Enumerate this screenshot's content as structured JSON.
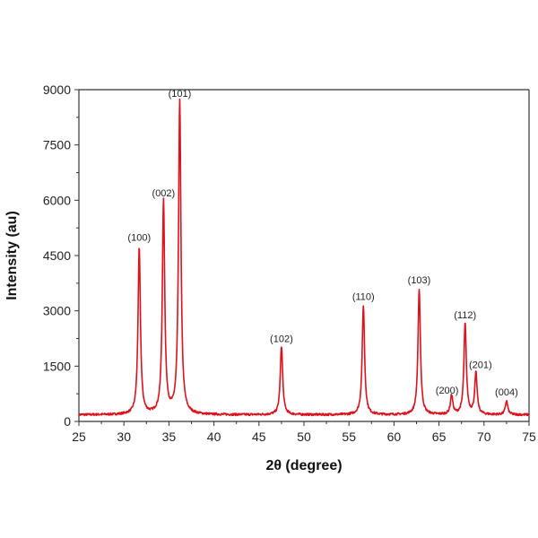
{
  "chart_data": {
    "type": "line",
    "title": "",
    "xlabel": "2θ (degree)",
    "ylabel": "Intensity (au)",
    "xlim": [
      25,
      75
    ],
    "ylim": [
      0,
      9000
    ],
    "x_ticks": [
      25,
      30,
      35,
      40,
      45,
      50,
      55,
      60,
      65,
      70,
      75
    ],
    "y_ticks": [
      0,
      1500,
      3000,
      4500,
      6000,
      7500,
      9000
    ],
    "grid": false,
    "legend": "none",
    "series": [
      {
        "color": "#e0101c",
        "baseline": 180,
        "peaks": [
          {
            "x": 31.7,
            "y": 4700
          },
          {
            "x": 34.4,
            "y": 5950
          },
          {
            "x": 36.2,
            "y": 8700
          },
          {
            "x": 47.5,
            "y": 2050
          },
          {
            "x": 56.6,
            "y": 3150
          },
          {
            "x": 62.8,
            "y": 3600
          },
          {
            "x": 66.4,
            "y": 700
          },
          {
            "x": 67.9,
            "y": 2650
          },
          {
            "x": 69.1,
            "y": 1300
          },
          {
            "x": 72.5,
            "y": 550
          }
        ]
      }
    ],
    "annotations": [
      {
        "text": "(100)",
        "x": 31.7,
        "y": 4900
      },
      {
        "text": "(002)",
        "x": 34.4,
        "y": 6100
      },
      {
        "text": "(101)",
        "x": 36.2,
        "y": 8800
      },
      {
        "text": "(102)",
        "x": 47.5,
        "y": 2150
      },
      {
        "text": "(110)",
        "x": 56.6,
        "y": 3300
      },
      {
        "text": "(103)",
        "x": 62.8,
        "y": 3750
      },
      {
        "text": "(200)",
        "x": 65.9,
        "y": 750
      },
      {
        "text": "(112)",
        "x": 67.9,
        "y": 2800
      },
      {
        "text": "(201)",
        "x": 69.6,
        "y": 1450
      },
      {
        "text": "(004)",
        "x": 72.5,
        "y": 700
      }
    ]
  }
}
